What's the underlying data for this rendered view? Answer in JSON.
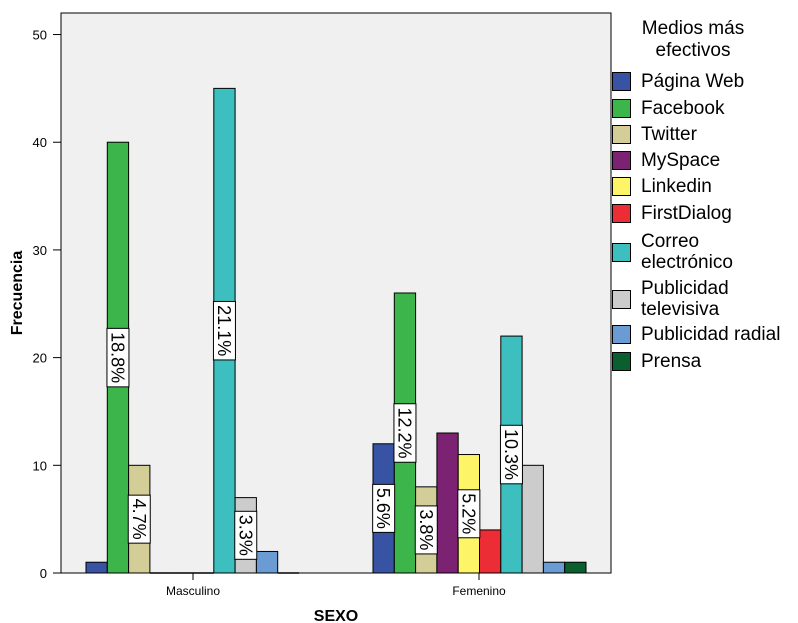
{
  "chart_data": {
    "type": "bar",
    "xlabel": "SEXO",
    "ylabel": "Frecuencia",
    "ylim": [
      0,
      52
    ],
    "yticks": [
      0,
      10,
      20,
      30,
      40,
      50
    ],
    "grid": false,
    "legend_title": "Medios más efectivos",
    "legend_position": "right",
    "categories": [
      "Masculino",
      "Femenino"
    ],
    "series": [
      {
        "name": "Página Web",
        "color": "#3953a4",
        "values": [
          1,
          12
        ],
        "labels": [
          "",
          "5.6%"
        ]
      },
      {
        "name": "Facebook",
        "color": "#3cb54a",
        "values": [
          40,
          26
        ],
        "labels": [
          "18.8%",
          "12.2%"
        ]
      },
      {
        "name": "Twitter",
        "color": "#d3ce97",
        "values": [
          10,
          8
        ],
        "labels": [
          "4.7%",
          "3.8%"
        ]
      },
      {
        "name": "MySpace",
        "color": "#7b2273",
        "values": [
          0,
          13
        ],
        "labels": [
          "",
          ""
        ]
      },
      {
        "name": "Linkedin",
        "color": "#fdf467",
        "values": [
          0,
          11
        ],
        "labels": [
          "",
          "5.2%"
        ]
      },
      {
        "name": "FirstDialog",
        "color": "#ec2d35",
        "values": [
          0,
          4
        ],
        "labels": [
          "",
          ""
        ]
      },
      {
        "name": "Correo electrónico",
        "color": "#3ebfbf",
        "values": [
          45,
          22
        ],
        "labels": [
          "21.1%",
          "10.3%"
        ]
      },
      {
        "name": "Publicidad televisiva",
        "color": "#cccccc",
        "values": [
          7,
          10
        ],
        "labels": [
          "3.3%",
          ""
        ]
      },
      {
        "name": "Publicidad radial",
        "color": "#6a9bd3",
        "values": [
          2,
          1
        ],
        "labels": [
          "",
          ""
        ]
      },
      {
        "name": "Prensa",
        "color": "#0b5e2e",
        "values": [
          0,
          1
        ],
        "labels": [
          "",
          ""
        ]
      }
    ]
  },
  "legend": {
    "title_line1": "Medios más",
    "title_line2": "efectivos",
    "items": [
      {
        "line1": "Página Web",
        "line2": ""
      },
      {
        "line1": "Facebook",
        "line2": ""
      },
      {
        "line1": "Twitter",
        "line2": ""
      },
      {
        "line1": "MySpace",
        "line2": ""
      },
      {
        "line1": "Linkedin",
        "line2": ""
      },
      {
        "line1": "FirstDialog",
        "line2": ""
      },
      {
        "line1": "Correo",
        "line2": "electrónico"
      },
      {
        "line1": "Publicidad",
        "line2": "televisiva"
      },
      {
        "line1": "Publicidad radial",
        "line2": ""
      },
      {
        "line1": "Prensa",
        "line2": ""
      }
    ]
  },
  "colors": {
    "plot_background": "#f0f0f0",
    "page_background": "#ffffff"
  }
}
